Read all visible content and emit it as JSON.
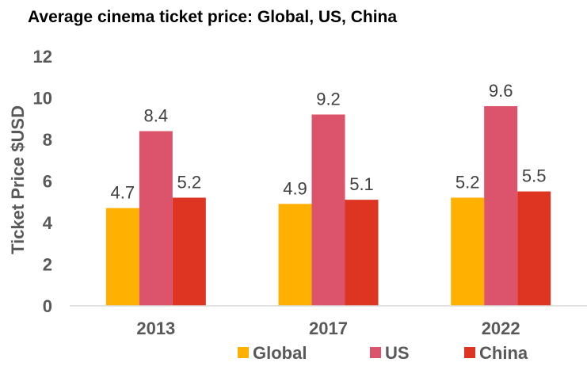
{
  "chart_data": {
    "type": "bar",
    "title": "Average cinema ticket price: Global, US, China",
    "xlabel": "",
    "ylabel": "Ticket Price $USD",
    "ylim": [
      0,
      12
    ],
    "yticks": [
      0,
      2,
      4,
      6,
      8,
      10,
      12
    ],
    "categories": [
      "2013",
      "2017",
      "2022"
    ],
    "series": [
      {
        "name": "Global",
        "color": "#FFB000",
        "values": [
          4.7,
          4.9,
          5.2
        ]
      },
      {
        "name": "US",
        "color": "#DC546B",
        "values": [
          8.4,
          9.2,
          9.6
        ]
      },
      {
        "name": "China",
        "color": "#DE3522",
        "values": [
          5.2,
          5.1,
          5.5
        ]
      }
    ],
    "data_labels": true,
    "grid": false,
    "legend_position": "bottom"
  }
}
